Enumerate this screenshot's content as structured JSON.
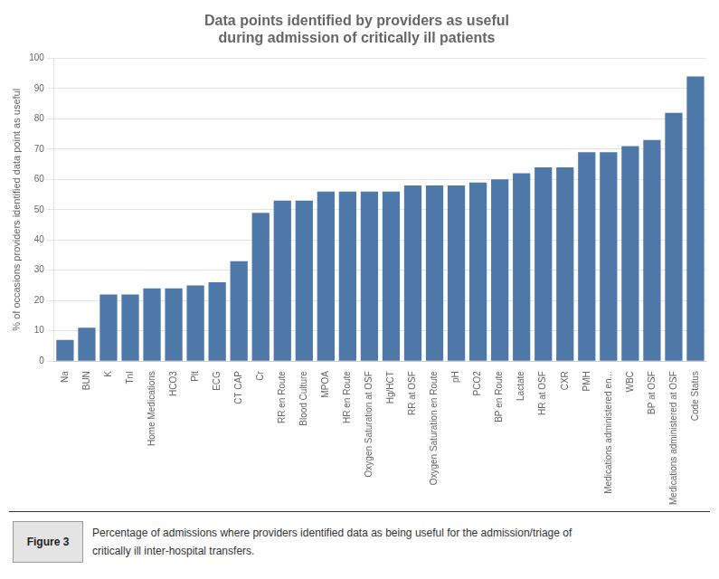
{
  "chart_data": {
    "type": "bar",
    "title": "Data points identified by providers as useful\nduring admission of critically ill patients",
    "y_label": "% of occasions providers identified data point as useful",
    "categories": [
      "Na",
      "BUN",
      "K",
      "TnI",
      "Home Medications",
      "HCO3",
      "Plt",
      "ECG",
      "CT CAP",
      "Cr",
      "RR en Route",
      "Blood Culture",
      "MPOA",
      "HR en Route",
      "Oxygen Saturation at OSF",
      "Hg/HCT",
      "RR at OSF",
      "Oxygen Saturation en Route",
      "pH",
      "PCO2",
      "BP en Route",
      "Lactate",
      "HR at OSF",
      "CXR",
      "PMH",
      "Medications administered en...",
      "WBC",
      "BP at OSF",
      "Medications administered at OSF",
      "Code Status"
    ],
    "values": [
      7,
      11,
      22,
      22,
      24,
      24,
      25,
      26,
      33,
      49,
      53,
      53,
      56,
      56,
      56,
      56,
      58,
      58,
      58,
      59,
      60,
      62,
      64,
      64,
      69,
      69,
      71,
      73,
      82,
      94
    ],
    "color": "#4E78A8",
    "ylim": [
      0,
      100
    ],
    "yticks": [
      0,
      10,
      20,
      30,
      40,
      50,
      60,
      70,
      80,
      90,
      100
    ],
    "grid": true,
    "annotations": [
      "Figure 3",
      "Percentage of admissions where providers identified data as being useful for the admission/triage of",
      "critically ill inter-hospital transfers."
    ]
  }
}
